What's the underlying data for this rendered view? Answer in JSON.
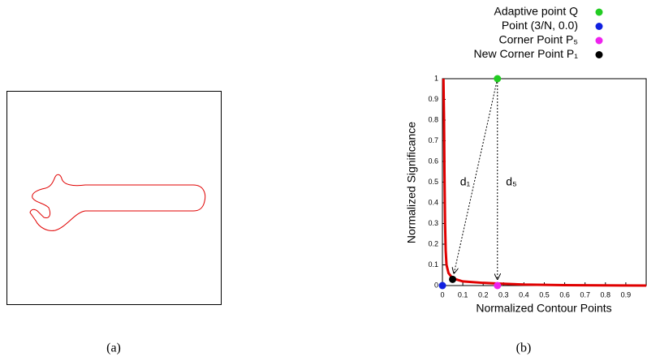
{
  "chart_data": {
    "type": "line",
    "xlabel": "Normalized Contour Points",
    "ylabel": "Normalized Significance",
    "xlim": [
      0,
      1
    ],
    "ylim": [
      0,
      1
    ],
    "xticks": [
      0,
      0.1,
      0.2,
      0.3,
      0.4,
      0.5,
      0.6,
      0.7,
      0.8,
      0.9
    ],
    "yticks": [
      0,
      0.1,
      0.2,
      0.3,
      0.4,
      0.5,
      0.6,
      0.7,
      0.8,
      0.9,
      1
    ],
    "series": [
      {
        "kind": "line",
        "color": "#e00000",
        "x": [
          0.005,
          0.008,
          0.01,
          0.013,
          0.016,
          0.02,
          0.03,
          0.05,
          0.1,
          0.2,
          0.27,
          0.4,
          0.6,
          1
        ],
        "values": [
          1,
          0.8,
          0.55,
          0.3,
          0.17,
          0.1,
          0.06,
          0.035,
          0.02,
          0.013,
          0.01,
          0.005,
          0.002,
          0
        ]
      },
      {
        "kind": "marker",
        "name": "Adaptive point Q",
        "color": "#22cc22",
        "x": [
          0.27
        ],
        "values": [
          1
        ]
      },
      {
        "kind": "marker",
        "name": "Point (3/N, 0.0)",
        "color": "#1020e0",
        "x": [
          0
        ],
        "values": [
          0
        ]
      },
      {
        "kind": "marker",
        "name": "Corner Point P₅",
        "color": "#ee22ee",
        "x": [
          0.27
        ],
        "values": [
          0
        ]
      },
      {
        "kind": "marker",
        "name": "New Corner Point P₁",
        "color": "#000000",
        "x": [
          0.05
        ],
        "values": [
          0.03
        ]
      }
    ],
    "annotations": [
      "d₁",
      "d₅"
    ]
  },
  "captions": [
    "(a)",
    "(b)"
  ]
}
